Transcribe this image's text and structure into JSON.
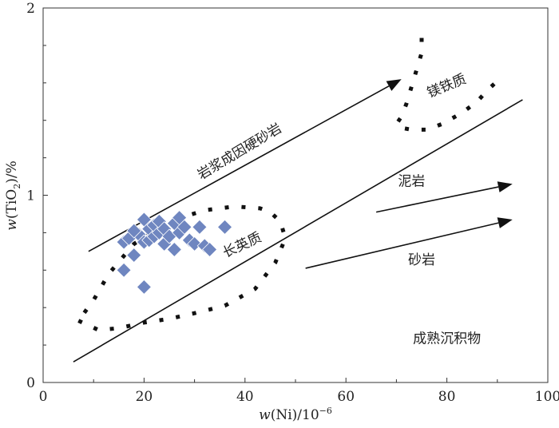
{
  "chart_data": {
    "type": "scatter",
    "title": "",
    "xlabel_parts": {
      "prefix": "w",
      "body": "(Ni)/10",
      "sup": "−6"
    },
    "ylabel_parts": {
      "prefix": "w",
      "body_open": "(TiO",
      "sub": "2",
      "body_close": ")/%"
    },
    "xlim": [
      0,
      100
    ],
    "ylim": [
      0,
      2
    ],
    "x_ticks": [
      "0",
      "20",
      "40",
      "60",
      "80",
      "100"
    ],
    "x_tick_values": [
      0,
      20,
      40,
      60,
      80,
      100
    ],
    "y_ticks": [
      "0",
      "1",
      "2"
    ],
    "y_tick_values": [
      0,
      1,
      2
    ],
    "grid": false,
    "series": [
      {
        "name": "samples",
        "marker": "diamond",
        "color": "#6f86c0",
        "x": [
          16,
          17,
          18,
          19,
          20,
          20,
          21,
          21,
          22,
          22,
          23,
          23,
          24,
          24,
          25,
          26,
          26,
          27,
          27,
          28,
          29,
          30,
          31,
          32,
          33,
          36,
          16,
          18,
          20
        ],
        "y": [
          0.75,
          0.77,
          0.68,
          0.79,
          0.75,
          0.87,
          0.76,
          0.82,
          0.78,
          0.84,
          0.8,
          0.86,
          0.82,
          0.74,
          0.78,
          0.85,
          0.71,
          0.8,
          0.88,
          0.83,
          0.76,
          0.74,
          0.83,
          0.73,
          0.71,
          0.83,
          0.6,
          0.81,
          0.51
        ]
      }
    ],
    "divider_line": {
      "x": [
        6,
        95
      ],
      "y": [
        0.11,
        1.51
      ]
    },
    "felsic_field": {
      "name": "长英质",
      "x": [
        7,
        11,
        15,
        20,
        25,
        30,
        36,
        42,
        46,
        48,
        47,
        45,
        43,
        38,
        32,
        25,
        18,
        13,
        10,
        7
      ],
      "y": [
        0.33,
        0.28,
        0.29,
        0.32,
        0.34,
        0.37,
        0.41,
        0.5,
        0.64,
        0.77,
        0.86,
        0.91,
        0.93,
        0.94,
        0.92,
        0.86,
        0.74,
        0.58,
        0.44,
        0.33
      ]
    },
    "mafic_field": {
      "name": "镁铁质",
      "x": [
        75,
        75,
        74,
        73,
        72,
        71,
        70,
        71,
        73,
        76,
        79,
        83,
        86,
        88,
        90
      ],
      "y": [
        1.84,
        1.76,
        1.67,
        1.58,
        1.49,
        1.42,
        1.38,
        1.36,
        1.35,
        1.35,
        1.38,
        1.44,
        1.5,
        1.56,
        1.61
      ]
    },
    "arrows": [
      {
        "name": "岩浆成因硬砂岩",
        "x": [
          9,
          71
        ],
        "y": [
          0.7,
          1.62
        ]
      },
      {
        "name": "泥岩",
        "x": [
          66,
          93
        ],
        "y": [
          0.91,
          1.06
        ]
      },
      {
        "name": "砂岩",
        "x": [
          52,
          93
        ],
        "y": [
          0.61,
          0.87
        ]
      }
    ],
    "annotations": [
      {
        "text": "岩浆成因硬砂岩",
        "x": 39,
        "y": 1.23,
        "angle": -31
      },
      {
        "text": "镁铁质",
        "x": 80,
        "y": 1.58,
        "angle": -22
      },
      {
        "text": "泥岩",
        "x": 73,
        "y": 1.07,
        "angle": 0
      },
      {
        "text": "砂岩",
        "x": 75,
        "y": 0.65,
        "angle": 0
      },
      {
        "text": "长英质",
        "x": 39.5,
        "y": 0.73,
        "angle": -25
      },
      {
        "text": "成熟沉积物",
        "x": 80,
        "y": 0.23,
        "angle": 0
      }
    ]
  }
}
